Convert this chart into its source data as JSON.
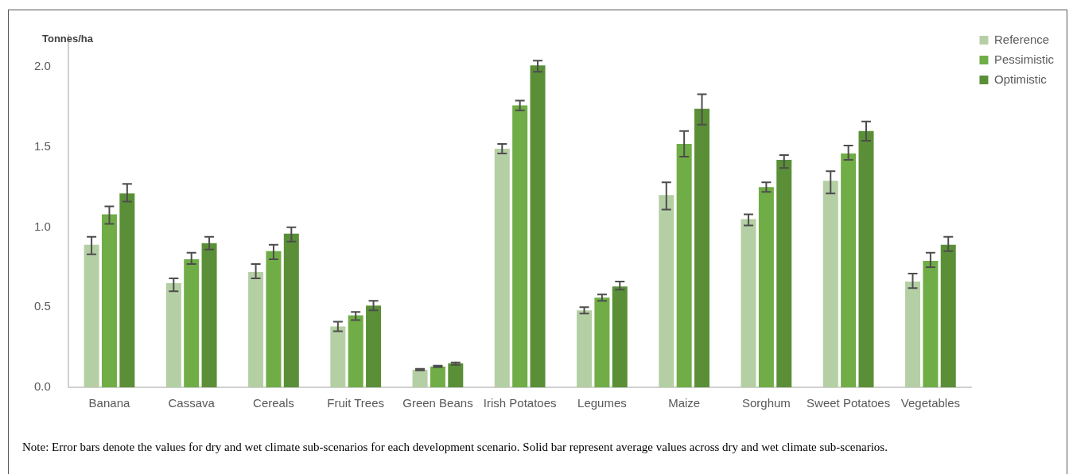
{
  "chart_data": {
    "type": "bar",
    "ylabel": "Tonnes/ha",
    "categories": [
      "Banana",
      "Cassava",
      "Cereals",
      "Fruit Trees",
      "Green Beans",
      "Irish Potatoes",
      "Legumes",
      "Maize",
      "Sorghum",
      "Sweet Potatoes",
      "Vegetables"
    ],
    "series": [
      {
        "name": "Reference",
        "color": "#b5cfa5",
        "values": [
          0.89,
          0.65,
          0.72,
          0.38,
          0.11,
          1.49,
          0.48,
          1.2,
          1.05,
          1.29,
          0.66
        ],
        "errors": [
          [
            0.83,
            0.94
          ],
          [
            0.6,
            0.68
          ],
          [
            0.68,
            0.77
          ],
          [
            0.35,
            0.41
          ],
          [
            0.105,
            0.115
          ],
          [
            1.46,
            1.52
          ],
          [
            0.46,
            0.5
          ],
          [
            1.11,
            1.28
          ],
          [
            1.01,
            1.08
          ],
          [
            1.21,
            1.35
          ],
          [
            0.62,
            0.71
          ]
        ]
      },
      {
        "name": "Pessimistic",
        "color": "#70ad47",
        "values": [
          1.08,
          0.8,
          0.85,
          0.45,
          0.13,
          1.76,
          0.56,
          1.52,
          1.25,
          1.46,
          0.79
        ],
        "errors": [
          [
            1.02,
            1.13
          ],
          [
            0.77,
            0.84
          ],
          [
            0.8,
            0.89
          ],
          [
            0.42,
            0.47
          ],
          [
            0.125,
            0.135
          ],
          [
            1.73,
            1.79
          ],
          [
            0.54,
            0.58
          ],
          [
            1.44,
            1.6
          ],
          [
            1.22,
            1.28
          ],
          [
            1.42,
            1.51
          ],
          [
            0.75,
            0.84
          ]
        ]
      },
      {
        "name": "Optimistic",
        "color": "#5a8f37",
        "values": [
          1.21,
          0.9,
          0.96,
          0.51,
          0.15,
          2.01,
          0.63,
          1.74,
          1.42,
          1.6,
          0.89
        ],
        "errors": [
          [
            1.16,
            1.27
          ],
          [
            0.86,
            0.94
          ],
          [
            0.91,
            1.0
          ],
          [
            0.48,
            0.54
          ],
          [
            0.14,
            0.155
          ],
          [
            1.97,
            2.04
          ],
          [
            0.61,
            0.66
          ],
          [
            1.64,
            1.83
          ],
          [
            1.37,
            1.45
          ],
          [
            1.54,
            1.66
          ],
          [
            0.85,
            0.94
          ]
        ]
      }
    ],
    "ylim": [
      0,
      2.2
    ],
    "yticks": [
      {
        "value": 0,
        "label": "0.0"
      },
      {
        "value": 0.5,
        "label": "0.5"
      },
      {
        "value": 1,
        "label": "1.0"
      },
      {
        "value": 1.5,
        "label": "1.5"
      },
      {
        "value": 2,
        "label": "2.0"
      }
    ],
    "grid": false,
    "legend": "top right",
    "annotations": [
      "Note: Error bars denote the values for dry and wet climate sub-scenarios for each development scenario. Solid bar represent average values across dry and wet climate sub-scenarios."
    ]
  }
}
